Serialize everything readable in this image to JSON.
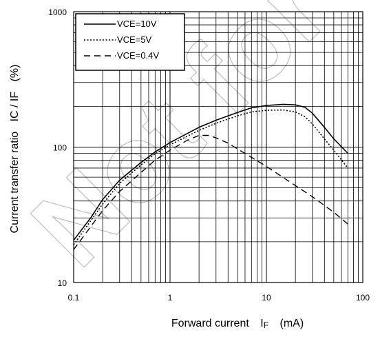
{
  "chart_data": {
    "type": "line",
    "x_scale": "log",
    "y_scale": "log",
    "xlim": [
      0.1,
      100
    ],
    "ylim": [
      10,
      1000
    ],
    "xlabel": {
      "main": "Forward current",
      "symbol": "I",
      "sub": "F",
      "unit": "(mA)"
    },
    "ylabel": {
      "main": "Current transfer ratio",
      "symbol": "IC / IF",
      "unit": "(%)"
    },
    "x_ticks": [
      "0.1",
      "1",
      "10",
      "100"
    ],
    "y_ticks": [
      "10",
      "100",
      "1000"
    ],
    "grid": true,
    "legend_position": "top-left",
    "watermark_text": "Not for",
    "series": [
      {
        "name": "VCE=10V",
        "style": "solid",
        "points": [
          [
            0.1,
            20.5
          ],
          [
            0.15,
            30
          ],
          [
            0.2,
            41
          ],
          [
            0.3,
            57
          ],
          [
            0.5,
            77
          ],
          [
            0.7,
            92
          ],
          [
            1,
            108
          ],
          [
            2,
            140
          ],
          [
            3,
            158
          ],
          [
            5,
            180
          ],
          [
            7,
            195
          ],
          [
            10,
            203
          ],
          [
            15,
            207
          ],
          [
            20,
            205
          ],
          [
            25,
            197
          ],
          [
            30,
            178
          ],
          [
            40,
            140
          ],
          [
            50,
            115
          ],
          [
            70,
            90
          ]
        ]
      },
      {
        "name": "VCE=5V",
        "style": "dotted",
        "points": [
          [
            0.1,
            19
          ],
          [
            0.2,
            38
          ],
          [
            0.3,
            54
          ],
          [
            0.5,
            74
          ],
          [
            0.7,
            89
          ],
          [
            1,
            104
          ],
          [
            2,
            133
          ],
          [
            3,
            150
          ],
          [
            5,
            170
          ],
          [
            7,
            182
          ],
          [
            10,
            187
          ],
          [
            15,
            188
          ],
          [
            20,
            182
          ],
          [
            25,
            168
          ],
          [
            30,
            148
          ],
          [
            40,
            115
          ],
          [
            50,
            95
          ],
          [
            70,
            70
          ]
        ]
      },
      {
        "name": "VCE=0.4V",
        "style": "dashed",
        "points": [
          [
            0.1,
            17.5
          ],
          [
            0.2,
            34
          ],
          [
            0.3,
            47
          ],
          [
            0.5,
            65
          ],
          [
            0.7,
            80
          ],
          [
            1,
            95
          ],
          [
            1.5,
            112
          ],
          [
            2,
            122
          ],
          [
            2.5,
            122
          ],
          [
            3,
            117
          ],
          [
            4,
            107
          ],
          [
            5,
            97
          ],
          [
            7,
            84
          ],
          [
            10,
            72
          ],
          [
            20,
            52
          ],
          [
            30,
            43
          ],
          [
            50,
            33
          ],
          [
            70,
            27
          ]
        ]
      }
    ]
  }
}
